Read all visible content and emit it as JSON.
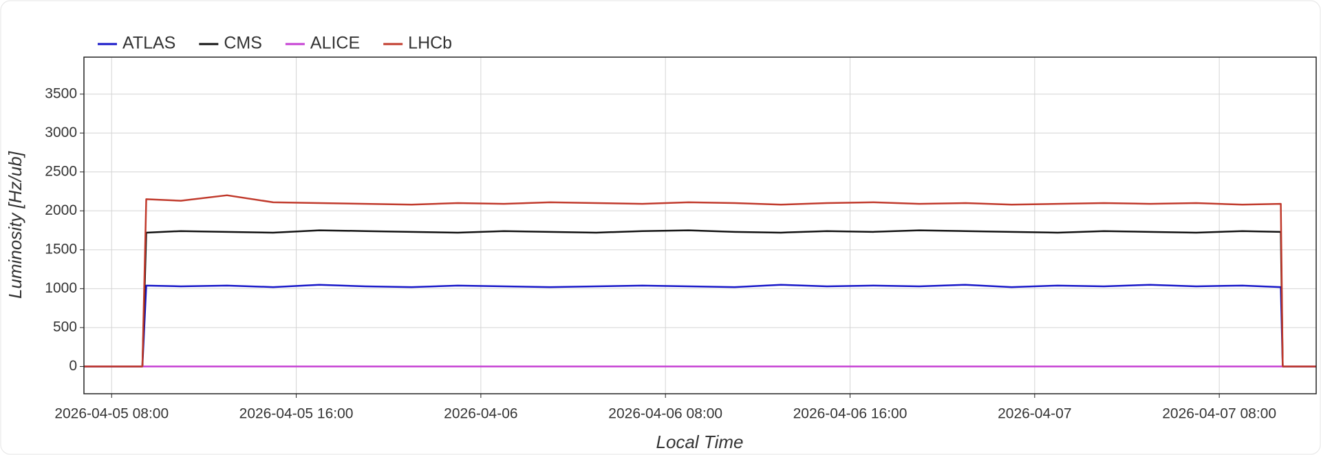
{
  "chart_data": {
    "type": "line",
    "x_title": "Local Time",
    "y_title": "Luminosity [Hz/ub]",
    "x": [
      "2026-04-05 06:48",
      "2026-04-05 09:20",
      "2026-04-05 09:30",
      "2026-04-05 11:00",
      "2026-04-05 13:00",
      "2026-04-05 15:00",
      "2026-04-05 17:00",
      "2026-04-05 19:00",
      "2026-04-05 21:00",
      "2026-04-05 23:00",
      "2026-04-06 01:00",
      "2026-04-06 03:00",
      "2026-04-06 05:00",
      "2026-04-06 07:00",
      "2026-04-06 09:00",
      "2026-04-06 11:00",
      "2026-04-06 13:00",
      "2026-04-06 15:00",
      "2026-04-06 17:00",
      "2026-04-06 19:00",
      "2026-04-06 21:00",
      "2026-04-06 23:00",
      "2026-04-07 01:00",
      "2026-04-07 03:00",
      "2026-04-07 05:00",
      "2026-04-07 07:00",
      "2026-04-07 09:00",
      "2026-04-07 10:40",
      "2026-04-07 10:45",
      "2026-04-07 12:12"
    ],
    "series": [
      {
        "name": "ATLAS",
        "color": "#1515c8",
        "values": [
          0,
          0,
          1040,
          1030,
          1040,
          1020,
          1050,
          1030,
          1020,
          1040,
          1030,
          1020,
          1030,
          1040,
          1030,
          1020,
          1050,
          1030,
          1040,
          1030,
          1050,
          1020,
          1040,
          1030,
          1050,
          1030,
          1040,
          1020,
          0,
          0
        ]
      },
      {
        "name": "CMS",
        "color": "#111111",
        "values": [
          0,
          0,
          1720,
          1740,
          1730,
          1720,
          1750,
          1740,
          1730,
          1720,
          1740,
          1730,
          1720,
          1740,
          1750,
          1730,
          1720,
          1740,
          1730,
          1750,
          1740,
          1730,
          1720,
          1740,
          1730,
          1720,
          1740,
          1730,
          0,
          0
        ]
      },
      {
        "name": "ALICE",
        "color": "#c53fd3",
        "values": [
          0,
          0,
          0,
          0,
          0,
          0,
          0,
          0,
          0,
          0,
          0,
          0,
          0,
          0,
          0,
          0,
          0,
          0,
          0,
          0,
          0,
          0,
          0,
          0,
          0,
          0,
          0,
          0,
          0,
          0
        ]
      },
      {
        "name": "LHCb",
        "color": "#c0392b",
        "values": [
          0,
          0,
          2150,
          2130,
          2200,
          2110,
          2100,
          2090,
          2080,
          2100,
          2090,
          2110,
          2100,
          2090,
          2110,
          2100,
          2080,
          2100,
          2110,
          2090,
          2100,
          2080,
          2090,
          2100,
          2090,
          2100,
          2080,
          2090,
          0,
          0
        ]
      }
    ],
    "xlim": [
      "2026-04-05 06:48",
      "2026-04-07 12:12"
    ],
    "xticks": [
      "2026-04-05 08:00",
      "2026-04-05 16:00",
      {
        "value": "2026-04-06 00:00",
        "label": "2026-04-06"
      },
      "2026-04-06 08:00",
      "2026-04-06 16:00",
      {
        "value": "2026-04-07 00:00",
        "label": "2026-04-07"
      },
      "2026-04-07 08:00"
    ],
    "ylim": [
      -350,
      3975
    ],
    "yticks": [
      0,
      500,
      1000,
      1500,
      2000,
      2500,
      3000,
      3500
    ],
    "grid": true,
    "legend": "top-left"
  }
}
